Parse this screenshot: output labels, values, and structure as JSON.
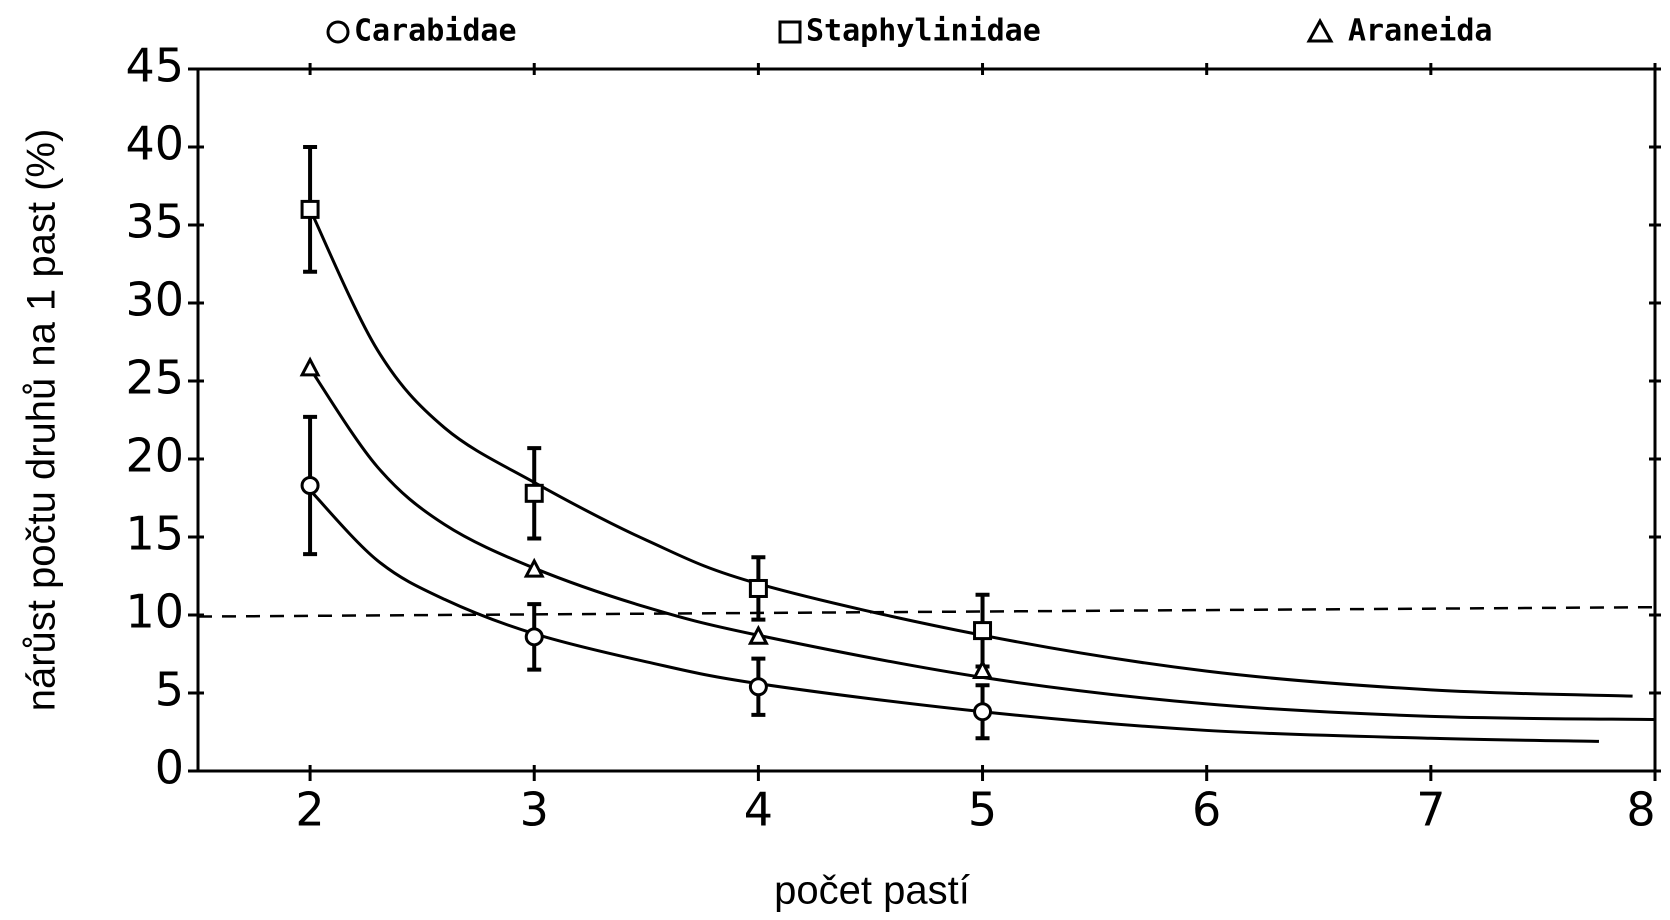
{
  "chart_data": {
    "type": "scatter",
    "x_label": "počet pastí",
    "y_label": "nárůst počtu druhů na 1 past (%)",
    "x": [
      2,
      3,
      4,
      5
    ],
    "xlim": [
      1.5,
      8
    ],
    "xticks": [
      2,
      3,
      4,
      5,
      6,
      7,
      8
    ],
    "ylim": [
      0,
      45
    ],
    "yticks": [
      0,
      5,
      10,
      15,
      20,
      25,
      30,
      35,
      40,
      45
    ],
    "series": [
      {
        "name": "Carabidae",
        "marker": "circle",
        "color": "#000000",
        "values": [
          18.3,
          8.6,
          5.4,
          3.8
        ],
        "errors": [
          4.4,
          2.1,
          1.8,
          1.7
        ],
        "fit": {
          "x": [
            2,
            2.3,
            2.6,
            3,
            3.5,
            4,
            5,
            6,
            7,
            7.75
          ],
          "values": [
            18,
            13.5,
            11,
            8.8,
            7,
            5.6,
            3.8,
            2.6,
            2.1,
            1.9
          ]
        }
      },
      {
        "name": "Staphylinidae",
        "marker": "square",
        "color": "#000000",
        "values": [
          36,
          17.8,
          11.7,
          9.0
        ],
        "errors": [
          4,
          2.9,
          2,
          2.3
        ],
        "fit": {
          "x": [
            2,
            2.3,
            2.6,
            3,
            3.5,
            4,
            5,
            6,
            7,
            7.9
          ],
          "values": [
            36,
            27,
            22,
            18.5,
            14.8,
            12,
            8.7,
            6.4,
            5.2,
            4.8
          ]
        }
      },
      {
        "name": "Araneida",
        "marker": "triangle",
        "color": "#000000",
        "values": [
          25.8,
          12.9,
          8.6,
          6.4
        ],
        "fit": {
          "x": [
            2,
            2.3,
            2.6,
            3,
            3.5,
            4,
            5,
            6,
            7,
            8
          ],
          "values": [
            25.8,
            19.5,
            15.8,
            13,
            10.5,
            8.7,
            6,
            4.3,
            3.5,
            3.3
          ]
        }
      }
    ],
    "reference_line": {
      "x": [
        1.5,
        8
      ],
      "values": [
        9.9,
        10.5
      ],
      "style": "dashed"
    }
  }
}
